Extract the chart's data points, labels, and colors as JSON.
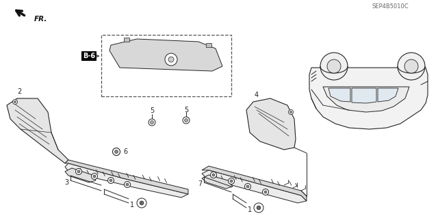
{
  "bg_color": "#ffffff",
  "line_color": "#222222",
  "part_number_text": "SEP4B5010C",
  "fig_width": 6.4,
  "fig_height": 3.19,
  "dpi": 100
}
